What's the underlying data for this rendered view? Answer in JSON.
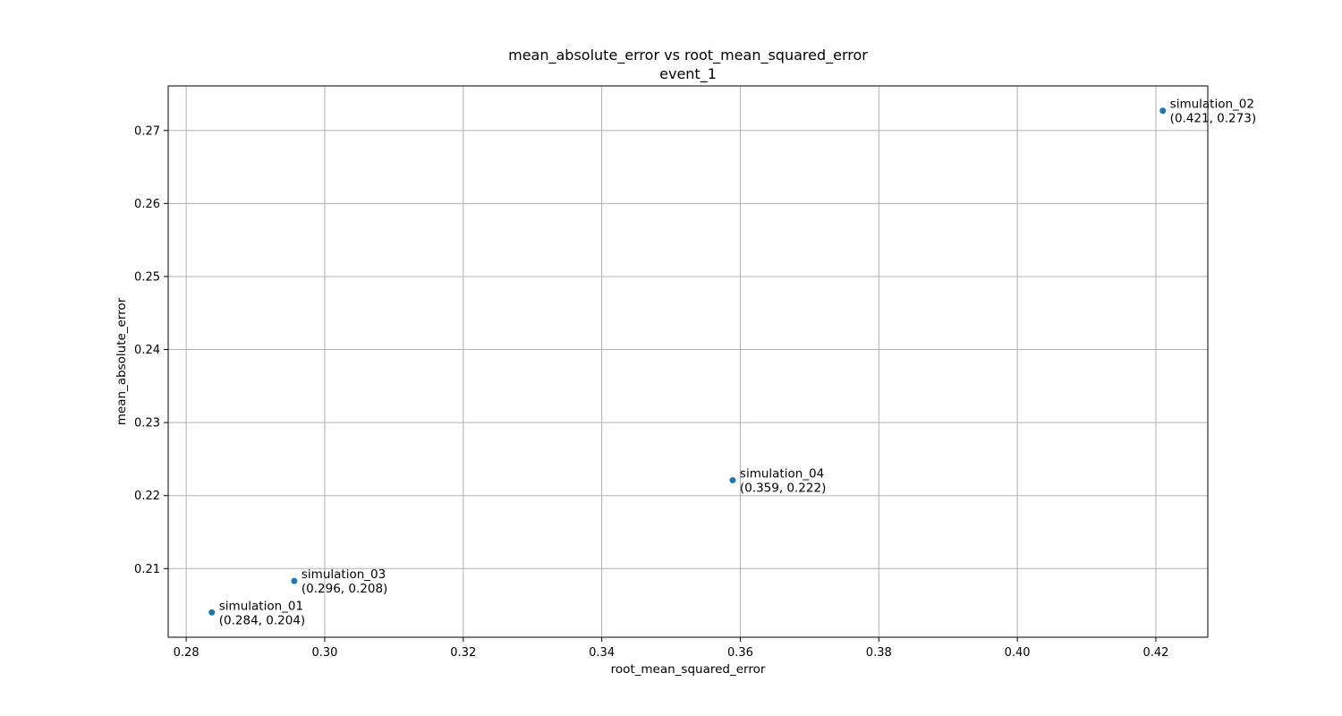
{
  "chart_data": {
    "type": "scatter",
    "title": "mean_absolute_error vs root_mean_squared_error",
    "subtitle": "event_1",
    "xlabel": "root_mean_squared_error",
    "ylabel": "mean_absolute_error",
    "xlim": [
      0.2774,
      0.4275
    ],
    "ylim": [
      0.2006,
      0.2761
    ],
    "xticks": [
      0.28,
      0.3,
      0.32,
      0.34,
      0.36,
      0.38,
      0.4,
      0.42
    ],
    "xtick_labels": [
      "0.28",
      "0.30",
      "0.32",
      "0.34",
      "0.36",
      "0.38",
      "0.40",
      "0.42"
    ],
    "yticks": [
      0.21,
      0.22,
      0.23,
      0.24,
      0.25,
      0.26,
      0.27
    ],
    "ytick_labels": [
      "0.21",
      "0.22",
      "0.23",
      "0.24",
      "0.25",
      "0.26",
      "0.27"
    ],
    "grid": true,
    "marker_color": "#1f77b4",
    "points": [
      {
        "x": 0.2837,
        "y": 0.204,
        "label": "simulation_01",
        "coords": "(0.284, 0.204)"
      },
      {
        "x": 0.421,
        "y": 0.2727,
        "label": "simulation_02",
        "coords": "(0.421, 0.273)"
      },
      {
        "x": 0.2956,
        "y": 0.2083,
        "label": "simulation_03",
        "coords": "(0.296, 0.208)"
      },
      {
        "x": 0.3589,
        "y": 0.2221,
        "label": "simulation_04",
        "coords": "(0.359, 0.222)"
      }
    ]
  }
}
